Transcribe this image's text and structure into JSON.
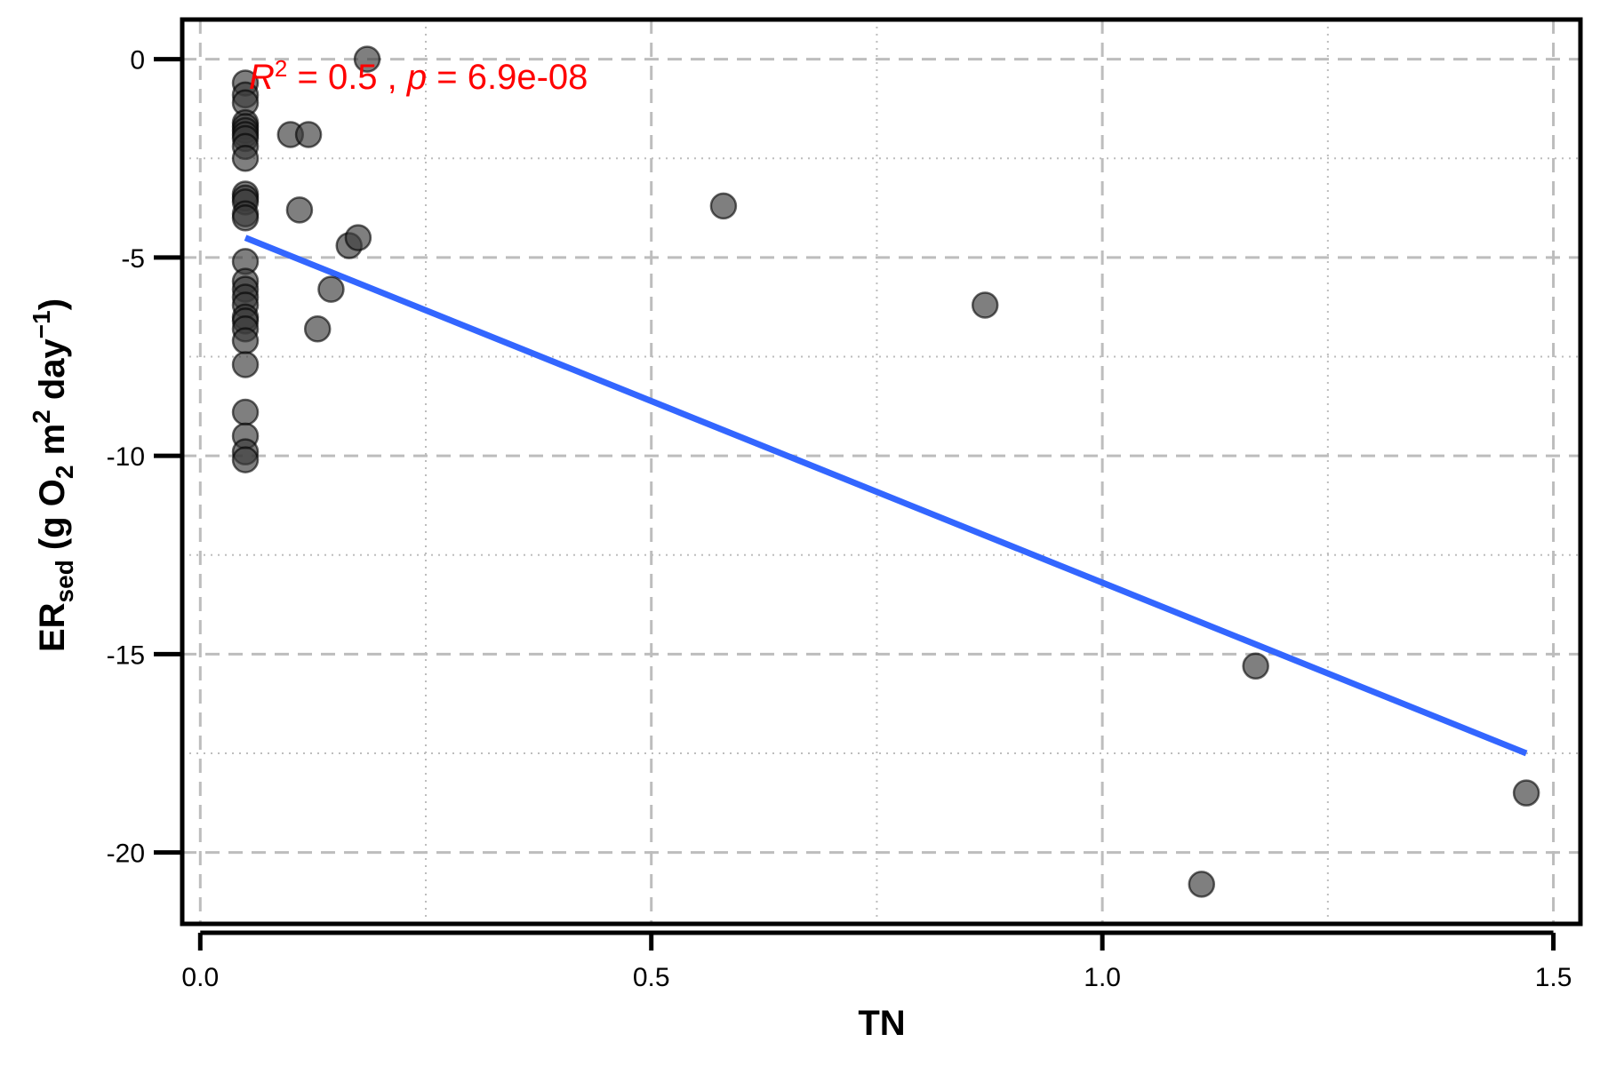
{
  "chart_data": {
    "type": "scatter",
    "title": "",
    "xlabel": "TN",
    "ylabel": {
      "main": "ER",
      "sub": "sed",
      "unit_open": " (g O",
      "unit_o2_sub": "2",
      "unit_m": " m",
      "unit_m_sup": "2",
      "unit_day": " day",
      "unit_day_sup": "−1",
      "unit_close": ")"
    },
    "xlim": [
      -0.02,
      1.53
    ],
    "ylim": [
      -21.8,
      1.0
    ],
    "x_ticks": [
      0.0,
      0.5,
      1.0,
      1.5
    ],
    "x_tick_labels": [
      "0.0",
      "0.5",
      "1.0",
      "1.5"
    ],
    "y_ticks": [
      0,
      -5,
      -10,
      -15,
      -20
    ],
    "y_tick_labels": [
      "0",
      "-5",
      "-10",
      "-15",
      "-20"
    ],
    "x_minor_grid": [
      0.25,
      0.75,
      1.25
    ],
    "y_minor_grid": [
      -2.5,
      -7.5,
      -12.5,
      -17.5
    ],
    "grid": true,
    "points": [
      {
        "x": 0.05,
        "y": -0.6
      },
      {
        "x": 0.05,
        "y": -0.9
      },
      {
        "x": 0.05,
        "y": -1.1
      },
      {
        "x": 0.05,
        "y": -1.6
      },
      {
        "x": 0.05,
        "y": -1.7
      },
      {
        "x": 0.05,
        "y": -1.8
      },
      {
        "x": 0.05,
        "y": -1.9
      },
      {
        "x": 0.05,
        "y": -2.0
      },
      {
        "x": 0.05,
        "y": -2.2
      },
      {
        "x": 0.05,
        "y": -2.5
      },
      {
        "x": 0.05,
        "y": -3.4
      },
      {
        "x": 0.05,
        "y": -3.5
      },
      {
        "x": 0.05,
        "y": -3.6
      },
      {
        "x": 0.05,
        "y": -3.9
      },
      {
        "x": 0.05,
        "y": -4.0
      },
      {
        "x": 0.05,
        "y": -5.1
      },
      {
        "x": 0.05,
        "y": -5.6
      },
      {
        "x": 0.05,
        "y": -5.8
      },
      {
        "x": 0.05,
        "y": -6.0
      },
      {
        "x": 0.05,
        "y": -6.2
      },
      {
        "x": 0.05,
        "y": -6.5
      },
      {
        "x": 0.05,
        "y": -6.6
      },
      {
        "x": 0.05,
        "y": -6.8
      },
      {
        "x": 0.05,
        "y": -7.1
      },
      {
        "x": 0.05,
        "y": -7.7
      },
      {
        "x": 0.05,
        "y": -8.9
      },
      {
        "x": 0.05,
        "y": -9.5
      },
      {
        "x": 0.05,
        "y": -9.9
      },
      {
        "x": 0.05,
        "y": -10.1
      },
      {
        "x": 0.1,
        "y": -1.9
      },
      {
        "x": 0.12,
        "y": -1.9
      },
      {
        "x": 0.11,
        "y": -3.8
      },
      {
        "x": 0.13,
        "y": -6.8
      },
      {
        "x": 0.145,
        "y": -5.8
      },
      {
        "x": 0.165,
        "y": -4.7
      },
      {
        "x": 0.175,
        "y": -4.5
      },
      {
        "x": 0.185,
        "y": 0.0
      },
      {
        "x": 0.58,
        "y": -3.7
      },
      {
        "x": 0.87,
        "y": -6.2
      },
      {
        "x": 1.11,
        "y": -20.8
      },
      {
        "x": 1.17,
        "y": -15.3
      },
      {
        "x": 1.47,
        "y": -18.5
      }
    ],
    "fit_line": {
      "x": [
        0.05,
        1.47
      ],
      "y": [
        -4.5,
        -17.5
      ]
    },
    "annotation": {
      "r": "R",
      "r_sup": "2",
      "mid": " = 0.5 , ",
      "p": "p",
      "tail": " = 6.9e-08"
    },
    "colors": {
      "points": "#3a3a3a",
      "fit_line": "#3366ff",
      "annotation": "#ff0000",
      "grid": "#bdbdbd"
    }
  }
}
